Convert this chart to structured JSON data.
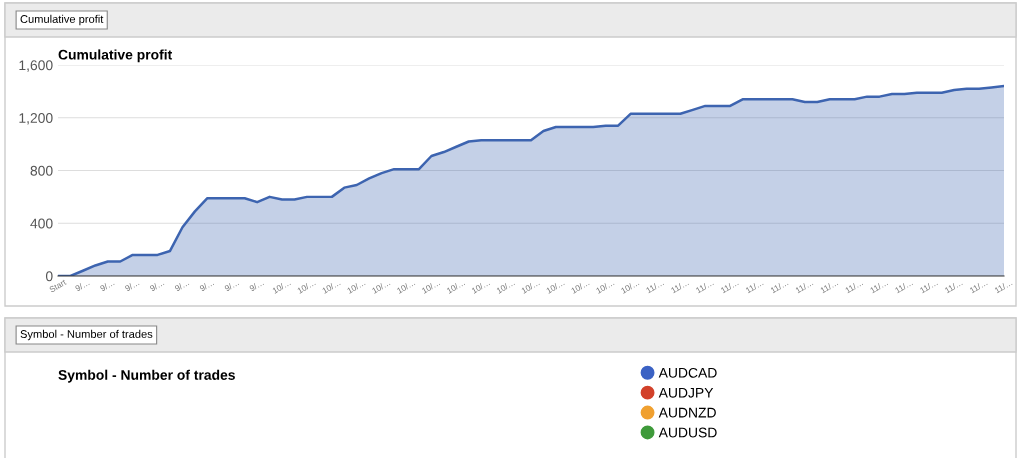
{
  "chart_data": [
    {
      "type": "area",
      "title": "Cumulative profit",
      "annotations": [
        "Cumulative profit"
      ],
      "categories": [
        "Start",
        null,
        "9/…",
        null,
        "9/…",
        null,
        "9/…",
        null,
        "9/…",
        null,
        "9/…",
        null,
        "9/…",
        null,
        "9/…",
        null,
        "9/…",
        null,
        "10/…",
        null,
        "10/…",
        null,
        "10/…",
        null,
        "10/…",
        null,
        "10/…",
        null,
        "10/…",
        null,
        "10/…",
        null,
        "10/…",
        null,
        "10/…",
        null,
        "10/…",
        null,
        "10/…",
        null,
        "10/…",
        null,
        "10/…",
        null,
        "10/…",
        null,
        "10/…",
        null,
        "11/…",
        null,
        "11/…",
        null,
        "11/…",
        null,
        "11/…",
        null,
        "11/…",
        null,
        "11/…",
        null,
        "11/…",
        null,
        "11/…",
        null,
        "11/…",
        null,
        "11/…",
        null,
        "11/…",
        null,
        "11/…",
        null,
        "11/…",
        null,
        "11/…",
        null,
        "11/…"
      ],
      "series": [
        {
          "color": "#3d64b0",
          "values": [
            0,
            0,
            40,
            80,
            110,
            110,
            160,
            160,
            160,
            190,
            370,
            490,
            590,
            590,
            590,
            590,
            560,
            600,
            580,
            580,
            600,
            600,
            600,
            670,
            690,
            740,
            780,
            810,
            810,
            810,
            910,
            940,
            980,
            1020,
            1030,
            1030,
            1030,
            1030,
            1030,
            1100,
            1130,
            1130,
            1130,
            1130,
            1140,
            1140,
            1230,
            1230,
            1230,
            1230,
            1230,
            1260,
            1290,
            1290,
            1290,
            1340,
            1340,
            1340,
            1340,
            1340,
            1320,
            1320,
            1340,
            1340,
            1340,
            1360,
            1360,
            1380,
            1380,
            1390,
            1390,
            1390,
            1410,
            1420,
            1420,
            1430,
            1440
          ]
        }
      ],
      "ylim": [
        0,
        1600
      ],
      "yticks": [
        0,
        400,
        800,
        {
          "value": 1200,
          "label": "1,200"
        },
        {
          "value": 1600,
          "label": "1,600"
        }
      ],
      "grid": "y",
      "legend": false
    },
    {
      "type": "other",
      "title": "Symbol - Number of trades",
      "annotations": [
        "Symbol - Number of trades"
      ],
      "series": [
        {
          "name": "AUDCAD",
          "color": "#3b62c4"
        },
        {
          "name": "AUDJPY",
          "color": "#d2412a"
        },
        {
          "name": "AUDNZD",
          "color": "#f0a030"
        },
        {
          "name": "AUDUSD",
          "color": "#3e9a3a"
        }
      ],
      "legend": "right"
    }
  ]
}
